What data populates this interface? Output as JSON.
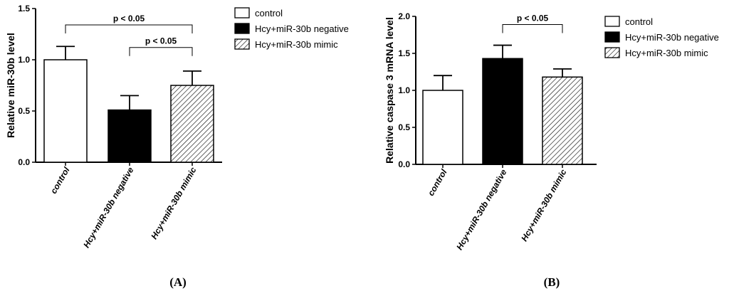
{
  "chart_data": [
    {
      "type": "bar",
      "panel": "(A)",
      "ylabel": "Relative miR-30b level",
      "categories": [
        "control",
        "Hcy+miR-30b negative",
        "Hcy+miR-30b mimic"
      ],
      "values": [
        1.0,
        0.51,
        0.75
      ],
      "errors": [
        0.13,
        0.14,
        0.14
      ],
      "ylim": [
        0,
        1.5
      ],
      "yticks": [
        "0.0",
        "0.5",
        "1.0",
        "1.5"
      ],
      "legend": [
        "control",
        "Hcy+miR-30b negative",
        "Hcy+miR-30b mimic"
      ],
      "fills": [
        "white",
        "black",
        "hatch"
      ],
      "annotations": [
        {
          "text": "p < 0.05",
          "from": 0,
          "to": 2,
          "y": 1.34
        },
        {
          "text": "p < 0.05",
          "from": 1,
          "to": 2,
          "y": 1.12
        }
      ]
    },
    {
      "type": "bar",
      "panel": "(B)",
      "ylabel": "Relative caspase 3 mRNA level",
      "categories": [
        "control",
        "Hcy+miR-30b negative",
        "Hcy+miR-30b mimic"
      ],
      "values": [
        1.0,
        1.43,
        1.18
      ],
      "errors": [
        0.2,
        0.18,
        0.11
      ],
      "ylim": [
        0,
        2.0
      ],
      "yticks": [
        "0.0",
        "0.5",
        "1.0",
        "1.5",
        "2.0"
      ],
      "legend": [
        "control",
        "Hcy+miR-30b negative",
        "Hcy+miR-30b mimic"
      ],
      "fills": [
        "white",
        "black",
        "hatch"
      ],
      "annotations": [
        {
          "text": "p < 0.05",
          "from": 1,
          "to": 2,
          "y": 1.89
        }
      ]
    }
  ]
}
